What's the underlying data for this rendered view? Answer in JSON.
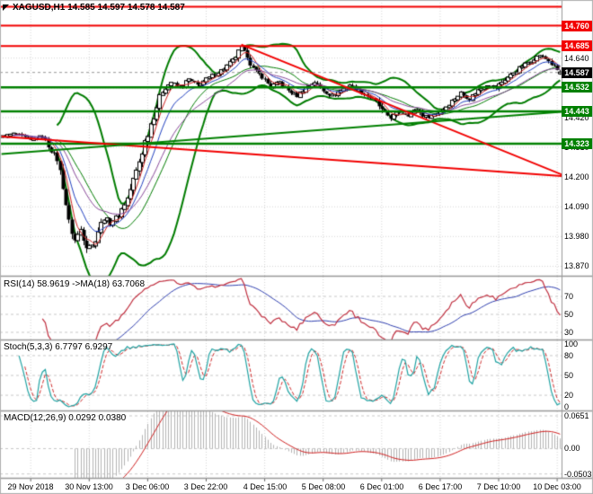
{
  "window": {
    "title_bar": {
      "full": "XAGUSD,H1 14.585 14.597 14.578 14.587"
    }
  },
  "colors": {
    "background": "#ffffff",
    "grid": "#d6d6d6",
    "wick": "#000000",
    "bull_body": "#ffffff",
    "bear_body": "#000000",
    "bollinger": "#007c00",
    "resistance": "#f20000",
    "support": "#008000",
    "current_badge_bg": "#000000",
    "axis_line": "#999999",
    "separator": "#999999"
  },
  "chart_data": {
    "type": "candlestick",
    "symbol": "XAGUSD",
    "timeframe": "H1",
    "title": "XAGUSD,H1 14.585 14.597 14.578 14.587",
    "last_candle": {
      "o": 14.585,
      "h": 14.597,
      "l": 14.578,
      "c": 14.587
    },
    "candle_count": 192,
    "x_first_tick_candle": 10,
    "x_tick_step": 20,
    "x_ticks": [
      "29 Nov 2018",
      "30 Nov 13:00",
      "3 Dec 06:00",
      "3 Dec 22:00",
      "4 Dec 15:00",
      "5 Dec 08:00",
      "6 Dec 01:00",
      "6 Dec 17:00",
      "7 Dec 10:00",
      "10 Dec 03:00"
    ],
    "y_range": [
      13.835,
      14.855
    ],
    "y_tick_labels": [
      "14.640",
      "14.530",
      "14.420",
      "14.310",
      "14.200",
      "14.090",
      "13.980",
      "13.870"
    ],
    "grid": true,
    "legend_position": "none",
    "current_price": {
      "value": 14.587,
      "label": "14.587"
    },
    "levels": [
      {
        "price": 14.83,
        "label": "",
        "color": "#f20000",
        "width": 2
      },
      {
        "price": 14.76,
        "label": "14.760",
        "color": "#f20000",
        "width": 2
      },
      {
        "price": 14.685,
        "label": "14.685",
        "color": "#f20000",
        "width": 2
      },
      {
        "price": 14.532,
        "label": "14.532",
        "color": "#008000",
        "width": 2.5
      },
      {
        "price": 14.443,
        "label": "14.443",
        "color": "#008000",
        "width": 2.5
      },
      {
        "price": 14.323,
        "label": "14.323",
        "color": "#008000",
        "width": 2.5
      }
    ],
    "trendlines": [
      {
        "from": [
          82,
          14.69
        ],
        "to": [
          196,
          14.19
        ],
        "color": "#f20000",
        "width": 2
      },
      {
        "from": [
          0,
          14.35
        ],
        "to": [
          196,
          14.2
        ],
        "color": "#f20000",
        "width": 2
      },
      {
        "from": [
          0,
          14.285
        ],
        "to": [
          196,
          14.445
        ],
        "color": "#008000",
        "width": 2
      }
    ],
    "price_path": [
      [
        0,
        14.35
      ],
      [
        5,
        14.36
      ],
      [
        10,
        14.335
      ],
      [
        14,
        14.35
      ],
      [
        17,
        14.3
      ],
      [
        19,
        14.265
      ],
      [
        21,
        14.17
      ],
      [
        23,
        14.03
      ],
      [
        25,
        13.965
      ],
      [
        27,
        14.005
      ],
      [
        29,
        13.95
      ],
      [
        31,
        13.945
      ],
      [
        33,
        14.0
      ],
      [
        35,
        14.05
      ],
      [
        37,
        14.03
      ],
      [
        40,
        14.06
      ],
      [
        43,
        14.12
      ],
      [
        46,
        14.22
      ],
      [
        49,
        14.33
      ],
      [
        52,
        14.43
      ],
      [
        55,
        14.52
      ],
      [
        58,
        14.55
      ],
      [
        61,
        14.53
      ],
      [
        64,
        14.56
      ],
      [
        67,
        14.54
      ],
      [
        70,
        14.56
      ],
      [
        73,
        14.58
      ],
      [
        76,
        14.6
      ],
      [
        79,
        14.63
      ],
      [
        82,
        14.675
      ],
      [
        84,
        14.65
      ],
      [
        86,
        14.6
      ],
      [
        89,
        14.57
      ],
      [
        92,
        14.535
      ],
      [
        95,
        14.55
      ],
      [
        98,
        14.52
      ],
      [
        101,
        14.5
      ],
      [
        104,
        14.53
      ],
      [
        107,
        14.55
      ],
      [
        110,
        14.52
      ],
      [
        113,
        14.5
      ],
      [
        116,
        14.52
      ],
      [
        119,
        14.54
      ],
      [
        122,
        14.52
      ],
      [
        125,
        14.5
      ],
      [
        128,
        14.48
      ],
      [
        130,
        14.445
      ],
      [
        133,
        14.42
      ],
      [
        136,
        14.44
      ],
      [
        139,
        14.43
      ],
      [
        142,
        14.45
      ],
      [
        145,
        14.42
      ],
      [
        148,
        14.43
      ],
      [
        151,
        14.45
      ],
      [
        154,
        14.48
      ],
      [
        157,
        14.51
      ],
      [
        160,
        14.49
      ],
      [
        163,
        14.52
      ],
      [
        166,
        14.54
      ],
      [
        169,
        14.53
      ],
      [
        172,
        14.56
      ],
      [
        175,
        14.585
      ],
      [
        178,
        14.61
      ],
      [
        181,
        14.63
      ],
      [
        184,
        14.65
      ],
      [
        187,
        14.63
      ],
      [
        189,
        14.605
      ],
      [
        191,
        14.587
      ]
    ],
    "bollinger": {
      "period": 20,
      "deviation": 2,
      "color": "#007c00"
    },
    "moving_averages": [
      {
        "type": "sma",
        "period": 5,
        "color": "#d02020"
      },
      {
        "type": "ema",
        "period": 10,
        "color": "#2040c0"
      },
      {
        "type": "ema",
        "period": 21,
        "color": "#8a4a9a"
      }
    ],
    "indicators": {
      "rsi": {
        "label": "RSI(14) 58.9619  ->MA(18) 63.7068",
        "period": 14,
        "value": 58.9619,
        "ma_period": 18,
        "ma_value": 63.7068,
        "axis_labels": [
          "70",
          "50",
          "30"
        ],
        "range": [
          22,
          92
        ],
        "line_color": "#c03040",
        "ma_color": "#3040b0"
      },
      "stoch": {
        "label": "Stoch(5,3,3) 6.7797 6.9297",
        "k_value": 6.7797,
        "d_value": 6.9297,
        "axis_labels": [
          "100",
          "80",
          "50",
          "20",
          "0"
        ],
        "level_lines": [
          80,
          50,
          20
        ],
        "range": [
          -3,
          103
        ],
        "k_color": "#21a3a3",
        "d_color": "#cf2e2e"
      },
      "macd": {
        "label": "MACD(12,26,9) 0.0292 0.0380",
        "macd_value": 0.0292,
        "signal_value": 0.038,
        "axis_labels": [
          "0.0651",
          "0.00",
          "-0.0503"
        ],
        "range": [
          -0.058,
          0.074
        ],
        "hist_color": "#b4b4b4",
        "signal_color": "#d02020"
      }
    }
  }
}
